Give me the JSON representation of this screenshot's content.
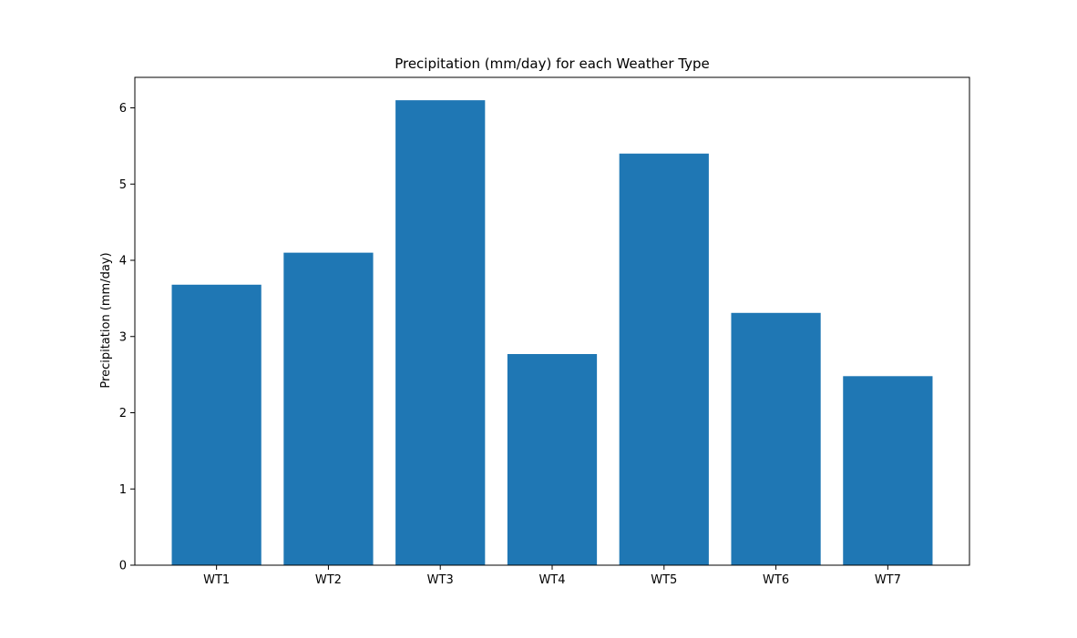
{
  "chart_data": {
    "type": "bar",
    "title": "Precipitation (mm/day) for each Weather Type",
    "xlabel": "",
    "ylabel": "Precipitation (mm/day)",
    "categories": [
      "WT1",
      "WT2",
      "WT3",
      "WT4",
      "WT5",
      "WT6",
      "WT7"
    ],
    "values": [
      3.68,
      4.1,
      6.1,
      2.77,
      5.4,
      3.31,
      2.48
    ],
    "ylim": [
      0,
      6.4
    ],
    "yticks": [
      0,
      1,
      2,
      3,
      4,
      5,
      6
    ],
    "grid": false,
    "legend": "none",
    "bar_color": "#1f77b4"
  }
}
